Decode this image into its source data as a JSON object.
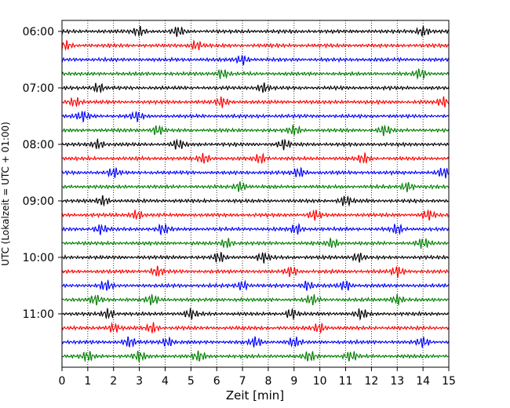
{
  "chart_data": {
    "type": "line",
    "title": "",
    "xlabel": "Zeit  [min]",
    "ylabel": "UTC (Lokalzeit = UTC + 01:00)",
    "xlim": [
      0,
      15
    ],
    "x_ticks": [
      0,
      1,
      2,
      3,
      4,
      5,
      6,
      7,
      8,
      9,
      10,
      11,
      12,
      13,
      14,
      15
    ],
    "y_tick_labels": [
      "06:00",
      "07:00",
      "08:00",
      "09:00",
      "10:00",
      "11:00"
    ],
    "grid": "vertical dotted",
    "trace_colors": [
      "#000000",
      "#ff0000",
      "#0000ff",
      "#007f00"
    ],
    "trace_count": 24,
    "trace_interval_minutes": 15,
    "first_trace_start": "06:00",
    "wiggle_minutes": [
      [
        3.0,
        4.5,
        14.0
      ],
      [
        0.1,
        5.2
      ],
      [
        7.0
      ],
      [
        6.2,
        13.9
      ],
      [
        1.4,
        7.8
      ],
      [
        0.5,
        6.2,
        14.8
      ],
      [
        0.8,
        2.9
      ],
      [
        3.7,
        9.0,
        12.5
      ],
      [
        1.4,
        4.5,
        8.6
      ],
      [
        5.5,
        7.7,
        11.7
      ],
      [
        2.0,
        9.2,
        14.8
      ],
      [
        6.9,
        13.4
      ],
      [
        1.6,
        11.0
      ],
      [
        2.9,
        9.8,
        14.2
      ],
      [
        1.5,
        3.9,
        9.1,
        13.0
      ],
      [
        6.4,
        10.5,
        14.0
      ],
      [
        6.1,
        7.8,
        11.5
      ],
      [
        3.7,
        8.9,
        13.0
      ],
      [
        1.7,
        7.0,
        9.5,
        11.0
      ],
      [
        1.3,
        3.5,
        9.7,
        13.0
      ],
      [
        1.8,
        5.0,
        8.9,
        11.6
      ],
      [
        2.0,
        3.5,
        10.0
      ],
      [
        2.6,
        4.1,
        7.5,
        9.0,
        14.0
      ],
      [
        1.0,
        3.0,
        5.3,
        9.6,
        11.2
      ]
    ]
  }
}
